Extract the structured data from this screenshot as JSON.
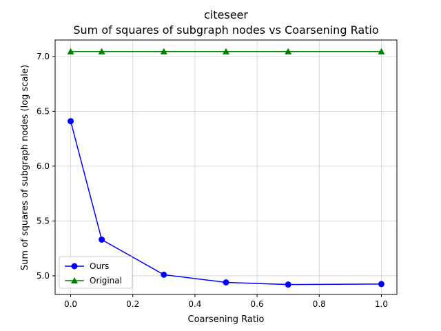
{
  "chart_data": {
    "type": "line",
    "title": "citeseer",
    "subtitle": "Sum of squares of subgraph nodes vs Coarsening Ratio",
    "xlabel": "Coarsening Ratio",
    "ylabel": "Sum of squares of subgraph nodes (log scale)",
    "xlim": [
      -0.05,
      1.05
    ],
    "ylim": [
      4.83,
      7.15
    ],
    "xticks": [
      0.0,
      0.2,
      0.4,
      0.6,
      0.8,
      1.0
    ],
    "xtick_labels": [
      "0.0",
      "0.2",
      "0.4",
      "0.6",
      "0.8",
      "1.0"
    ],
    "yticks": [
      5.0,
      5.5,
      6.0,
      6.5,
      7.0
    ],
    "ytick_labels": [
      "5.0",
      "5.5",
      "6.0",
      "6.5",
      "7.0"
    ],
    "grid": true,
    "legend_position": "lower-left",
    "series": [
      {
        "name": "Ours",
        "color": "#0000ff",
        "marker": "circle",
        "x": [
          0.0,
          0.1,
          0.3,
          0.5,
          0.7,
          1.0
        ],
        "y": [
          6.41,
          5.33,
          5.01,
          4.94,
          4.92,
          4.925
        ]
      },
      {
        "name": "Original",
        "color": "#008000",
        "marker": "triangle",
        "x": [
          0.0,
          0.1,
          0.3,
          0.5,
          0.7,
          1.0
        ],
        "y": [
          7.045,
          7.045,
          7.045,
          7.045,
          7.045,
          7.045
        ]
      }
    ]
  }
}
